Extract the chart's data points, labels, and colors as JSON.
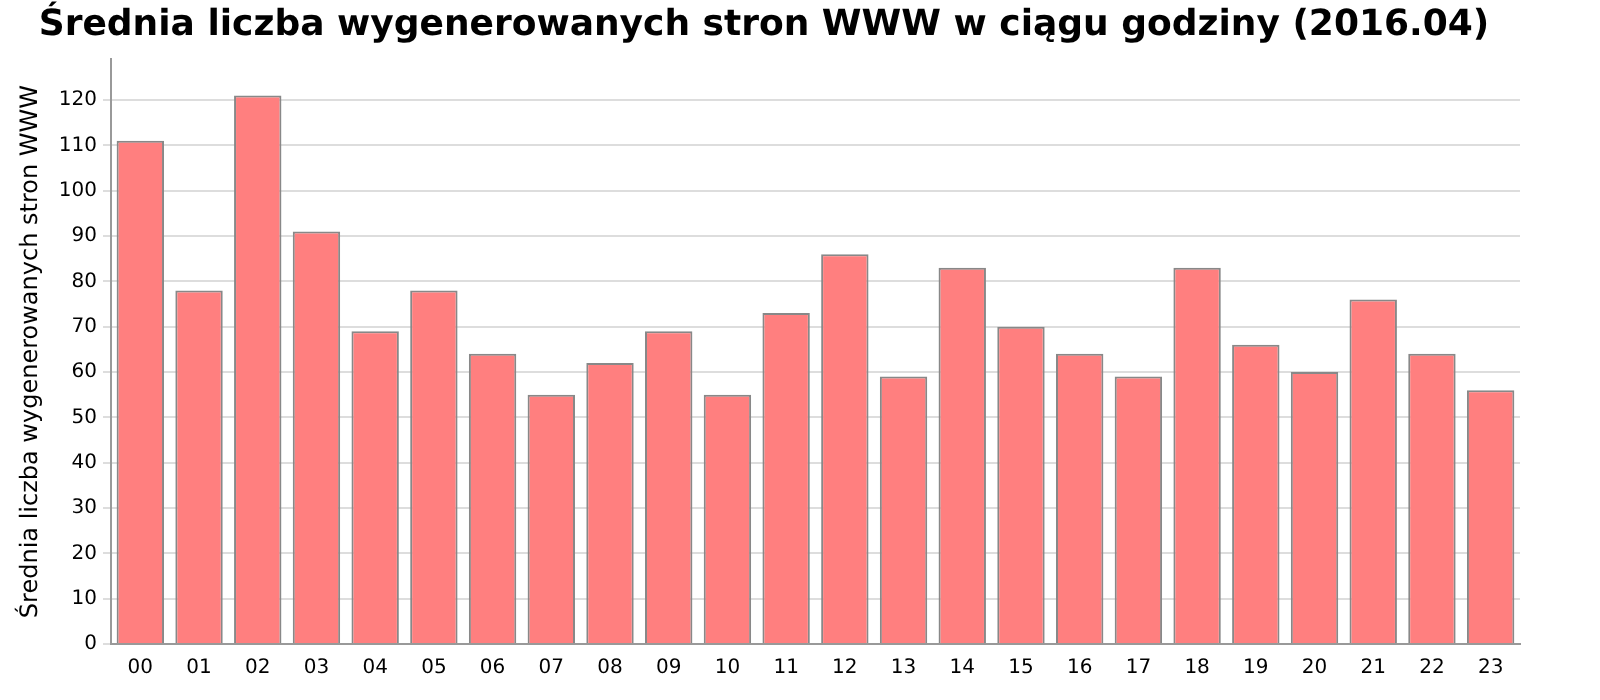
{
  "chart_data": {
    "type": "bar",
    "title": "Średnia liczba wygenerowanych stron WWW w ciągu godziny (2016.04)",
    "ylabel": "Średnia liczba wygenerowanych stron WWW",
    "categories": [
      "00",
      "01",
      "02",
      "03",
      "04",
      "05",
      "06",
      "07",
      "08",
      "09",
      "10",
      "11",
      "12",
      "13",
      "14",
      "15",
      "16",
      "17",
      "18",
      "19",
      "20",
      "21",
      "22",
      "23"
    ],
    "values": [
      111,
      78,
      121,
      91,
      69,
      78,
      64,
      55,
      62,
      69,
      55,
      73,
      86,
      59,
      83,
      70,
      64,
      59,
      83,
      66,
      60,
      76,
      64,
      56
    ],
    "color": "#ff7f7f",
    "ylim": [
      0,
      129
    ],
    "yticks": [
      0,
      10,
      20,
      30,
      40,
      50,
      60,
      70,
      80,
      90,
      100,
      110,
      120
    ],
    "grid": "y",
    "legend": false
  }
}
